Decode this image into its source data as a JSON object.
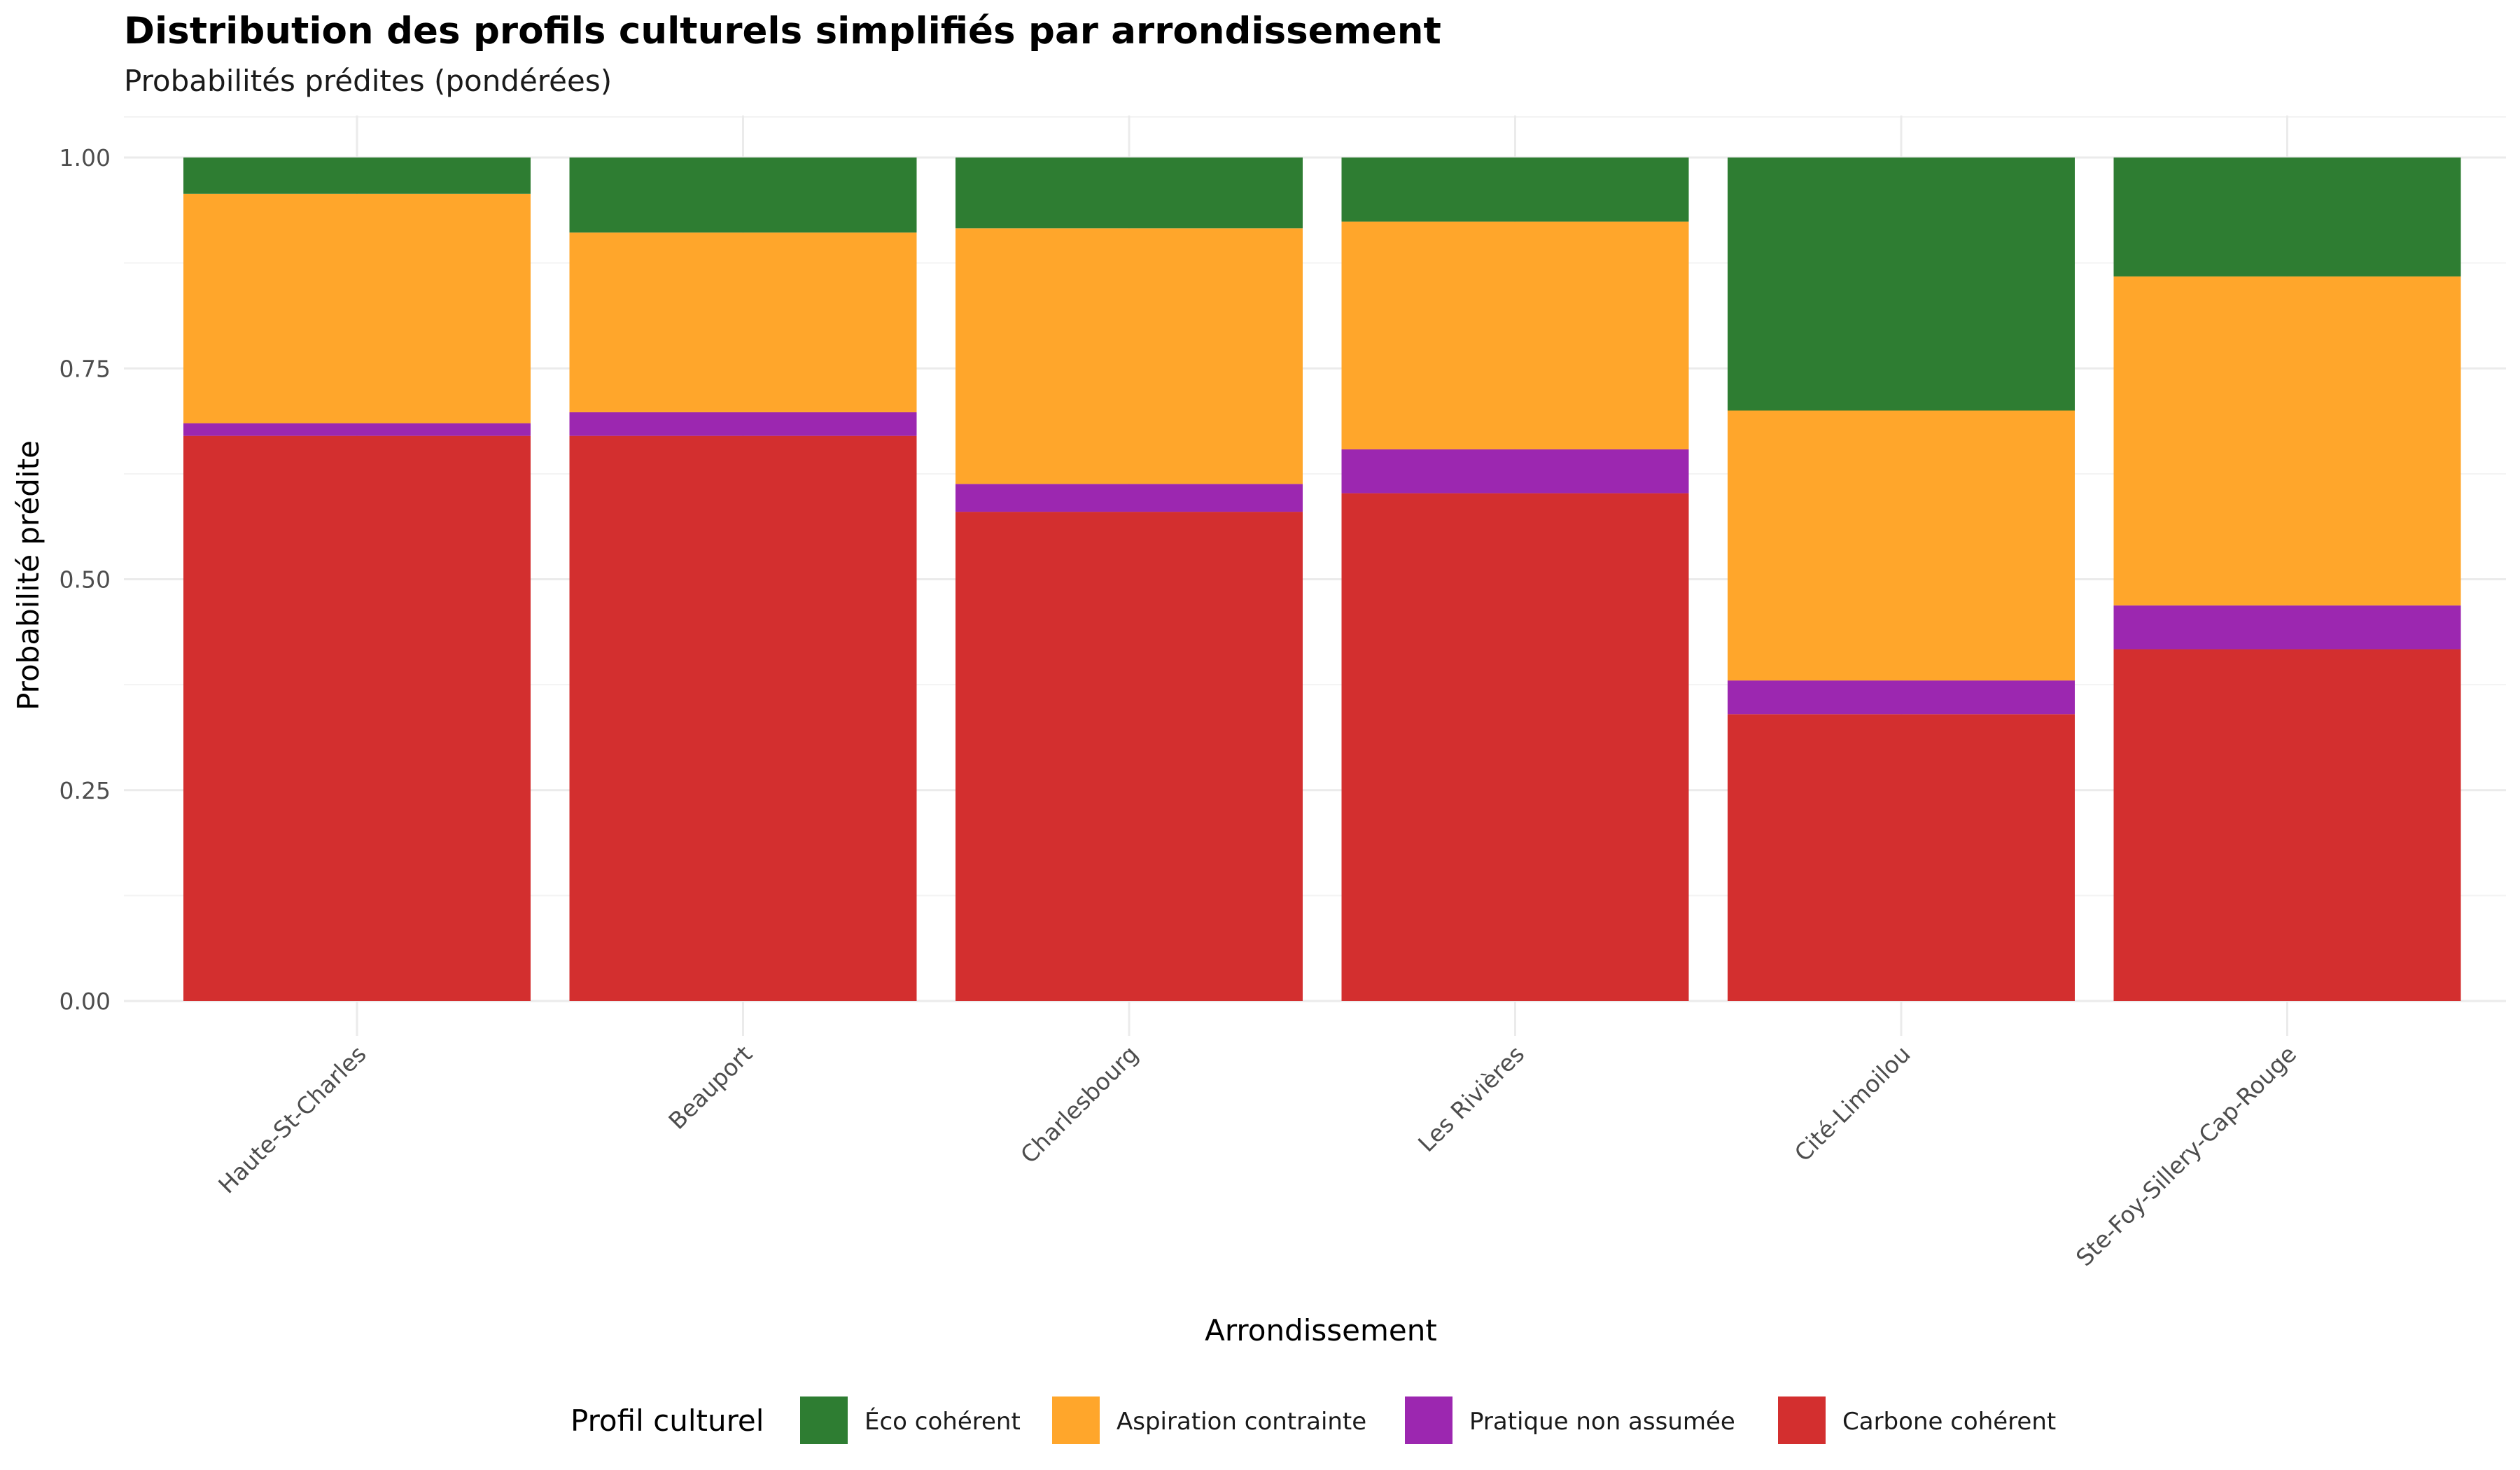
{
  "chart_data": {
    "type": "bar",
    "stacked": true,
    "title": "Distribution des profils culturels simplifiés par arrondissement",
    "subtitle": "Probabilités prédites (pondérées)",
    "xlabel": "Arrondissement",
    "ylabel": "Probabilité prédite",
    "ylim": [
      0,
      1
    ],
    "yticks": [
      "0.00",
      "0.25",
      "0.50",
      "0.75",
      "1.00"
    ],
    "ytick_values": [
      0,
      0.25,
      0.5,
      0.75,
      1.0
    ],
    "grid": true,
    "legend_position": "bottom",
    "legend_title": "Profil culturel",
    "categories": [
      "Haute-St-Charles",
      "Beauport",
      "Charlesbourg",
      "Les Rivières",
      "Cité-Limoilou",
      "Ste-Foy-Sillery-Cap-Rouge"
    ],
    "series": [
      {
        "name": "Carbone cohérent",
        "color": "#d32f2f",
        "values": [
          0.67,
          0.67,
          0.58,
          0.602,
          0.34,
          0.417
        ]
      },
      {
        "name": "Pratique non assumée",
        "color": "#9c27b0",
        "values": [
          0.015,
          0.028,
          0.033,
          0.052,
          0.04,
          0.052
        ]
      },
      {
        "name": "Aspiration contrainte",
        "color": "#ffa62b",
        "values": [
          0.272,
          0.213,
          0.303,
          0.27,
          0.32,
          0.39
        ]
      },
      {
        "name": "Éco cohérent",
        "color": "#2e7d32",
        "values": [
          0.043,
          0.089,
          0.084,
          0.076,
          0.3,
          0.141
        ]
      }
    ],
    "legend_order": [
      "Éco cohérent",
      "Aspiration contrainte",
      "Pratique non assumée",
      "Carbone cohérent"
    ]
  }
}
